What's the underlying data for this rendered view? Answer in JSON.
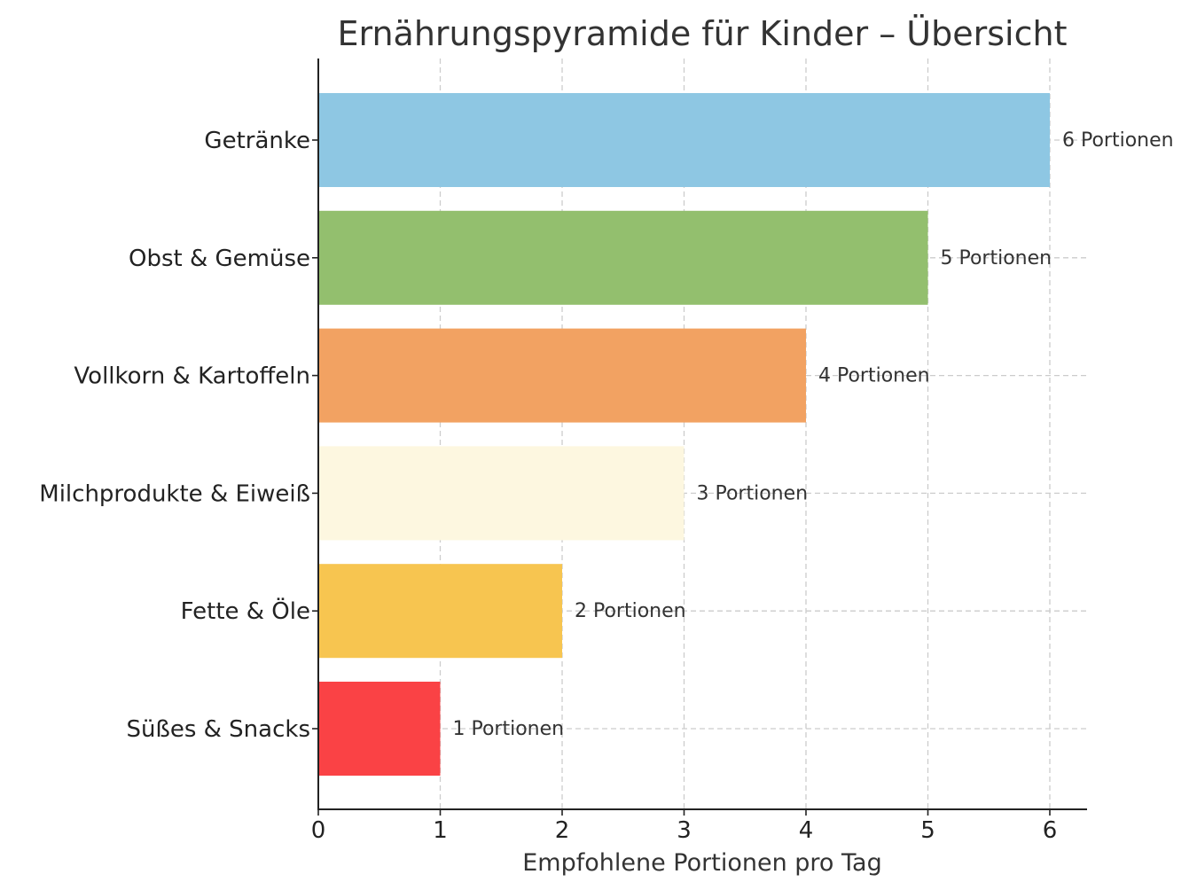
{
  "chart_data": {
    "type": "bar",
    "orientation": "horizontal",
    "title": "Ernährungspyramide für Kinder – Übersicht",
    "xlabel": "Empfohlene Portionen pro Tag",
    "ylabel": "",
    "xlim": [
      0,
      6.3
    ],
    "xticks": [
      0,
      1,
      2,
      3,
      4,
      5,
      6
    ],
    "grid": true,
    "categories": [
      "Getränke",
      "Obst & Gemüse",
      "Vollkorn & Kartoffeln",
      "Milchprodukte & Eiweiß",
      "Fette & Öle",
      "Süßes & Snacks"
    ],
    "values": [
      6,
      5,
      4,
      3,
      2,
      1
    ],
    "data_labels": [
      "6 Portionen",
      "5 Portionen",
      "4 Portionen",
      "3 Portionen",
      "2 Portionen",
      "1 Portionen"
    ],
    "colors": [
      "#8ec7e3",
      "#93bf6e",
      "#f2a262",
      "#fdf7e0",
      "#f7c550",
      "#fa4245"
    ]
  }
}
